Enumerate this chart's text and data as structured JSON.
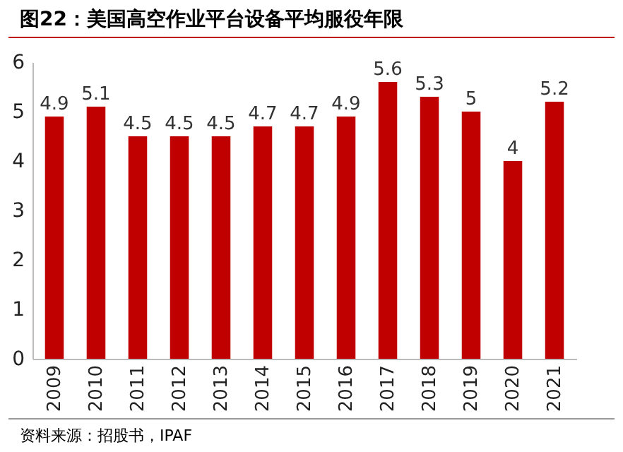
{
  "chart_data": {
    "type": "bar",
    "title": "图22：美国高空作业平台设备平均服役年限",
    "categories": [
      "2009",
      "2010",
      "2011",
      "2012",
      "2013",
      "2014",
      "2015",
      "2016",
      "2017",
      "2018",
      "2019",
      "2020",
      "2021"
    ],
    "values": [
      4.9,
      5.1,
      4.5,
      4.5,
      4.5,
      4.7,
      4.7,
      4.9,
      5.6,
      5.3,
      5,
      4,
      5.2
    ],
    "color": "#c00000",
    "ylim": [
      0,
      6
    ],
    "yticks": [
      0,
      1,
      2,
      3,
      4,
      5,
      6
    ],
    "grid": false,
    "data_labels": true,
    "annotations": [
      "资料来源：招股书，IPAF"
    ]
  }
}
